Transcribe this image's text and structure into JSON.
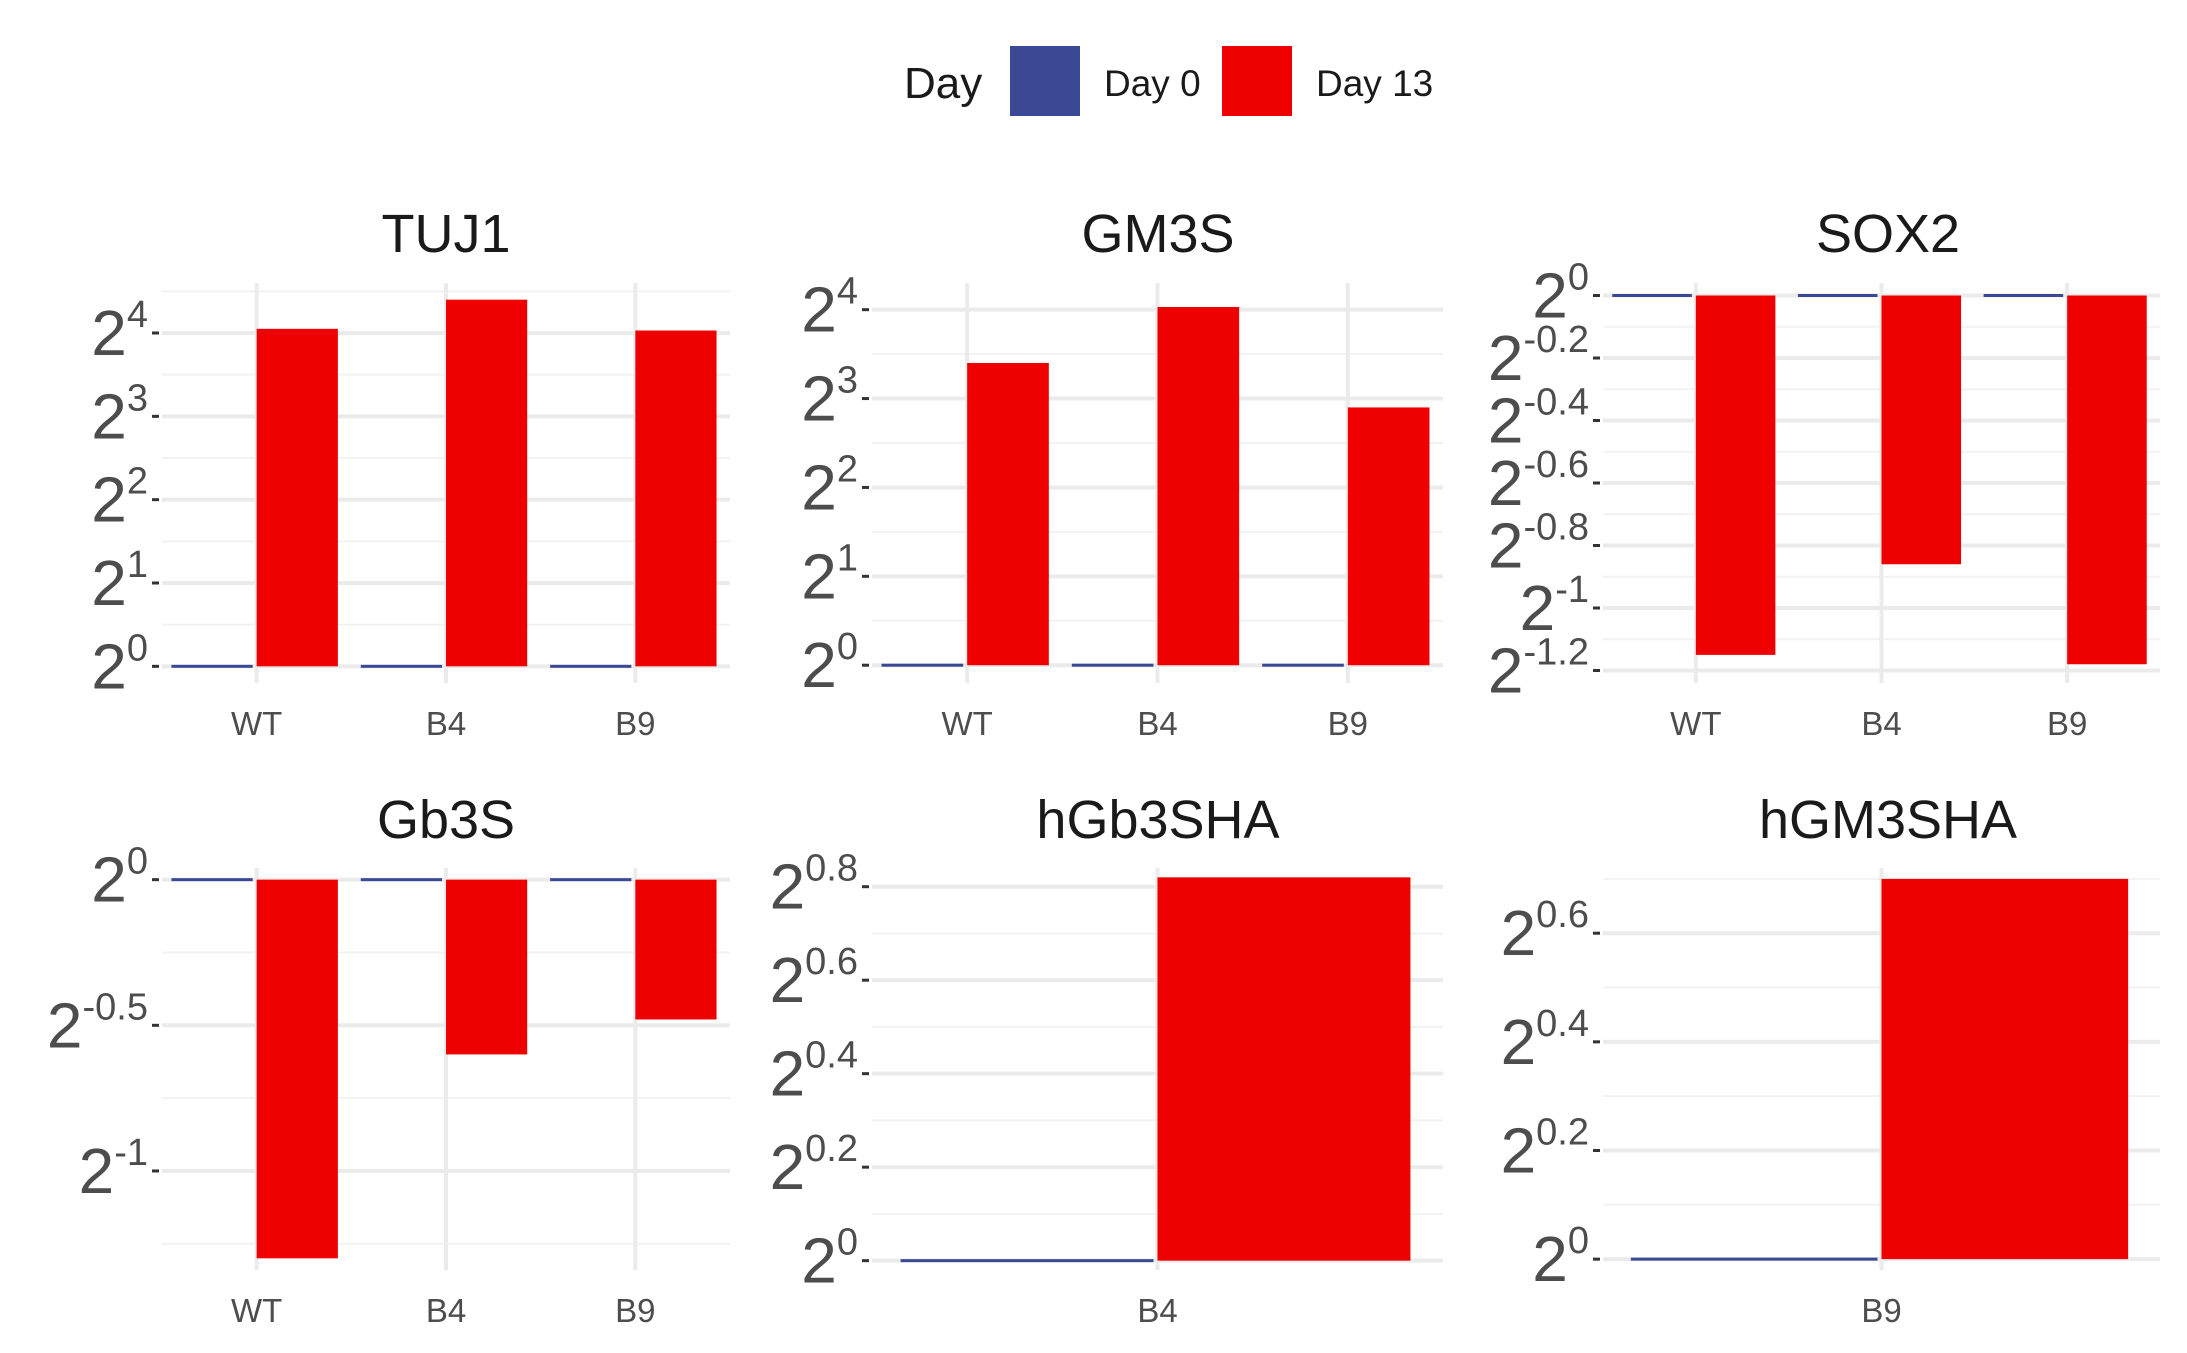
{
  "legend": {
    "title": "Day",
    "items": [
      {
        "label": "Day 0",
        "color": "#3b4994"
      },
      {
        "label": "Day 13",
        "color": "#ee0000"
      }
    ]
  },
  "chart_data": [
    {
      "type": "bar",
      "title": "TUJ1",
      "scale": "log2",
      "categories": [
        "WT",
        "B4",
        "B9"
      ],
      "series": [
        {
          "name": "Day 0",
          "values": [
            0,
            0,
            0
          ]
        },
        {
          "name": "Day 13",
          "values": [
            4.05,
            4.4,
            4.03
          ]
        }
      ],
      "ylim": [
        -0.2,
        4.6
      ],
      "yticks": [
        {
          "base": "2",
          "exp": "0",
          "value": 0
        },
        {
          "base": "2",
          "exp": "1",
          "value": 1
        },
        {
          "base": "2",
          "exp": "2",
          "value": 2
        },
        {
          "base": "2",
          "exp": "3",
          "value": 3
        },
        {
          "base": "2",
          "exp": "4",
          "value": 4
        }
      ]
    },
    {
      "type": "bar",
      "title": "GM3S",
      "scale": "log2",
      "categories": [
        "WT",
        "B4",
        "B9"
      ],
      "series": [
        {
          "name": "Day 0",
          "values": [
            0,
            0,
            0
          ]
        },
        {
          "name": "Day 13",
          "values": [
            3.4,
            4.03,
            2.9
          ]
        }
      ],
      "ylim": [
        -0.2,
        4.3
      ],
      "yticks": [
        {
          "base": "2",
          "exp": "0",
          "value": 0
        },
        {
          "base": "2",
          "exp": "1",
          "value": 1
        },
        {
          "base": "2",
          "exp": "2",
          "value": 2
        },
        {
          "base": "2",
          "exp": "3",
          "value": 3
        },
        {
          "base": "2",
          "exp": "4",
          "value": 4
        }
      ]
    },
    {
      "type": "bar",
      "title": "SOX2",
      "scale": "log2",
      "categories": [
        "WT",
        "B4",
        "B9"
      ],
      "series": [
        {
          "name": "Day 0",
          "values": [
            0,
            0,
            0
          ]
        },
        {
          "name": "Day 13",
          "values": [
            -1.15,
            -0.86,
            -1.18
          ]
        }
      ],
      "ylim": [
        -1.24,
        0.04
      ],
      "yticks": [
        {
          "base": "2",
          "exp": "0",
          "value": 0
        },
        {
          "base": "2",
          "exp": "-0.2",
          "value": -0.2
        },
        {
          "base": "2",
          "exp": "-0.4",
          "value": -0.4
        },
        {
          "base": "2",
          "exp": "-0.6",
          "value": -0.6
        },
        {
          "base": "2",
          "exp": "-0.8",
          "value": -0.8
        },
        {
          "base": "2",
          "exp": "-1",
          "value": -1
        },
        {
          "base": "2",
          "exp": "-1.2",
          "value": -1.2
        }
      ]
    },
    {
      "type": "bar",
      "title": "Gb3S",
      "scale": "log2",
      "categories": [
        "WT",
        "B4",
        "B9"
      ],
      "series": [
        {
          "name": "Day 0",
          "values": [
            0,
            0,
            0
          ]
        },
        {
          "name": "Day 13",
          "values": [
            -1.3,
            -0.6,
            -0.48
          ]
        }
      ],
      "ylim": [
        -1.34,
        0.04
      ],
      "yticks": [
        {
          "base": "2",
          "exp": "0",
          "value": 0
        },
        {
          "base": "2",
          "exp": "-0.5",
          "value": -0.5
        },
        {
          "base": "2",
          "exp": "-1",
          "value": -1
        }
      ]
    },
    {
      "type": "bar",
      "title": "hGb3SHA",
      "scale": "log2",
      "categories": [
        "B4"
      ],
      "series": [
        {
          "name": "Day 0",
          "values": [
            0
          ]
        },
        {
          "name": "Day 13",
          "values": [
            0.82
          ]
        }
      ],
      "ylim": [
        -0.02,
        0.84
      ],
      "yticks": [
        {
          "base": "2",
          "exp": "0",
          "value": 0
        },
        {
          "base": "2",
          "exp": "0.2",
          "value": 0.2
        },
        {
          "base": "2",
          "exp": "0.4",
          "value": 0.4
        },
        {
          "base": "2",
          "exp": "0.6",
          "value": 0.6
        },
        {
          "base": "2",
          "exp": "0.8",
          "value": 0.8
        }
      ]
    },
    {
      "type": "bar",
      "title": "hGM3SHA",
      "scale": "log2",
      "categories": [
        "B9"
      ],
      "series": [
        {
          "name": "Day 0",
          "values": [
            0
          ]
        },
        {
          "name": "Day 13",
          "values": [
            0.7
          ]
        }
      ],
      "ylim": [
        -0.02,
        0.72
      ],
      "yticks": [
        {
          "base": "2",
          "exp": "0",
          "value": 0
        },
        {
          "base": "2",
          "exp": "0.2",
          "value": 0.2
        },
        {
          "base": "2",
          "exp": "0.4",
          "value": 0.4
        },
        {
          "base": "2",
          "exp": "0.6",
          "value": 0.6
        }
      ]
    }
  ]
}
